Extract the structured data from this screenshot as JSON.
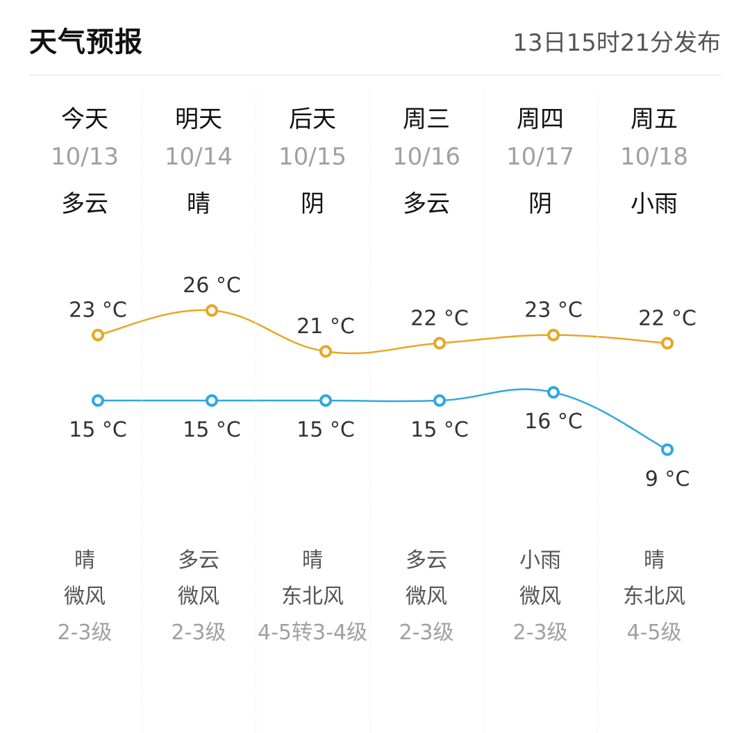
{
  "header": {
    "title": "天气预报",
    "publish_time": "13日15时21分发布"
  },
  "days": [
    {
      "day": "今天",
      "date": "10/13",
      "day_weather": "多云",
      "night_weather": "晴",
      "wind_dir": "微风",
      "wind_level": "2-3级",
      "high": "23 °C",
      "low": "15 °C"
    },
    {
      "day": "明天",
      "date": "10/14",
      "day_weather": "晴",
      "night_weather": "多云",
      "wind_dir": "微风",
      "wind_level": "2-3级",
      "high": "26 °C",
      "low": "15 °C"
    },
    {
      "day": "后天",
      "date": "10/15",
      "day_weather": "阴",
      "night_weather": "晴",
      "wind_dir": "东北风",
      "wind_level": "4-5转3-4级",
      "high": "21 °C",
      "low": "15 °C"
    },
    {
      "day": "周三",
      "date": "10/16",
      "day_weather": "多云",
      "night_weather": "多云",
      "wind_dir": "微风",
      "wind_level": "2-3级",
      "high": "22 °C",
      "low": "15 °C"
    },
    {
      "day": "周四",
      "date": "10/17",
      "day_weather": "阴",
      "night_weather": "小雨",
      "wind_dir": "微风",
      "wind_level": "2-3级",
      "high": "23 °C",
      "low": "16 °C"
    },
    {
      "day": "周五",
      "date": "10/18",
      "day_weather": "小雨",
      "night_weather": "晴",
      "wind_dir": "东北风",
      "wind_level": "4-5级",
      "high": "22 °C",
      "low": "9 °C"
    }
  ],
  "chart_data": {
    "type": "line",
    "categories": [
      "10/13",
      "10/14",
      "10/15",
      "10/16",
      "10/17",
      "10/18"
    ],
    "series": [
      {
        "values": [
          23,
          26,
          21,
          22,
          23,
          22
        ],
        "color": "#e8a623"
      },
      {
        "values": [
          15,
          15,
          15,
          15,
          16,
          9
        ],
        "color": "#2fa8e0"
      }
    ]
  }
}
